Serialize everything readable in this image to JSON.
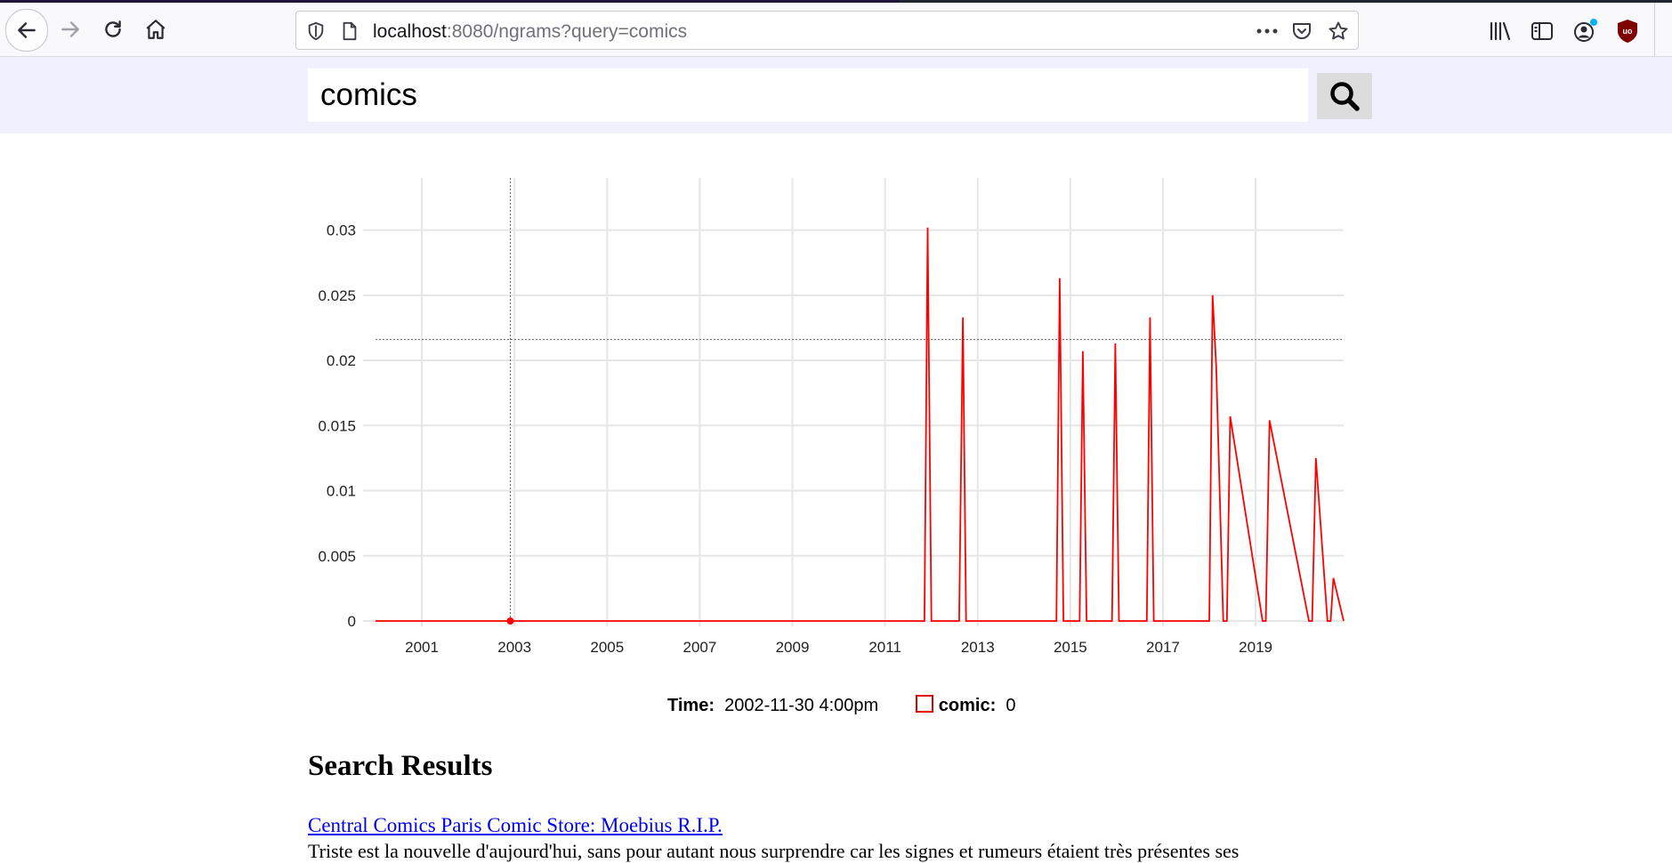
{
  "browser": {
    "url_host": "localhost",
    "url_rest": ":8080/ngrams?query=comics"
  },
  "search": {
    "query": "comics"
  },
  "chart_data": {
    "type": "line",
    "x_tick_labels": [
      "2001",
      "2003",
      "2005",
      "2007",
      "2009",
      "2011",
      "2013",
      "2015",
      "2017",
      "2019"
    ],
    "y_tick_labels": [
      "0",
      "0.005",
      "0.01",
      "0.015",
      "0.02",
      "0.025",
      "0.03"
    ],
    "xlim": [
      2000.0,
      2020.9
    ],
    "ylim": [
      0,
      0.034
    ],
    "grid": true,
    "crosshair": {
      "x": 2002.91,
      "y": 0.0216
    },
    "series": [
      {
        "name": "comic",
        "color": "#ff0000",
        "x": [
          2000.0,
          2011.85,
          2011.92,
          2012.0,
          2012.6,
          2012.68,
          2012.75,
          2014.7,
          2014.77,
          2014.85,
          2015.2,
          2015.27,
          2015.35,
          2015.9,
          2015.97,
          2016.05,
          2016.65,
          2016.72,
          2016.8,
          2018.0,
          2018.07,
          2018.15,
          2018.3,
          2018.38,
          2018.45,
          2019.15,
          2019.22,
          2019.3,
          2020.15,
          2020.22,
          2020.3,
          2020.55,
          2020.62,
          2020.68,
          2020.9
        ],
        "y": [
          0,
          0,
          0.0302,
          0,
          0,
          0.0233,
          0,
          0,
          0.0263,
          0,
          0,
          0.0207,
          0,
          0,
          0.0213,
          0,
          0,
          0.0233,
          0,
          0,
          0.025,
          0.0195,
          0,
          0,
          0.0157,
          0,
          0,
          0.0154,
          0,
          0,
          0.0125,
          0,
          0,
          0.0033,
          0
        ]
      }
    ]
  },
  "legend": {
    "time_label": "Time:",
    "time_value": "2002-11-30 4:00pm",
    "series_label": "comic:",
    "series_value": "0",
    "series_color": "#e00000"
  },
  "results": {
    "heading": "Search Results",
    "items": [
      {
        "title": "Central Comics Paris Comic Store: Moebius R.I.P.",
        "snippet": "Triste est la nouvelle d'aujourd'hui, sans pour autant nous surprendre car les signes et rumeurs étaient très présentes ses"
      }
    ]
  }
}
